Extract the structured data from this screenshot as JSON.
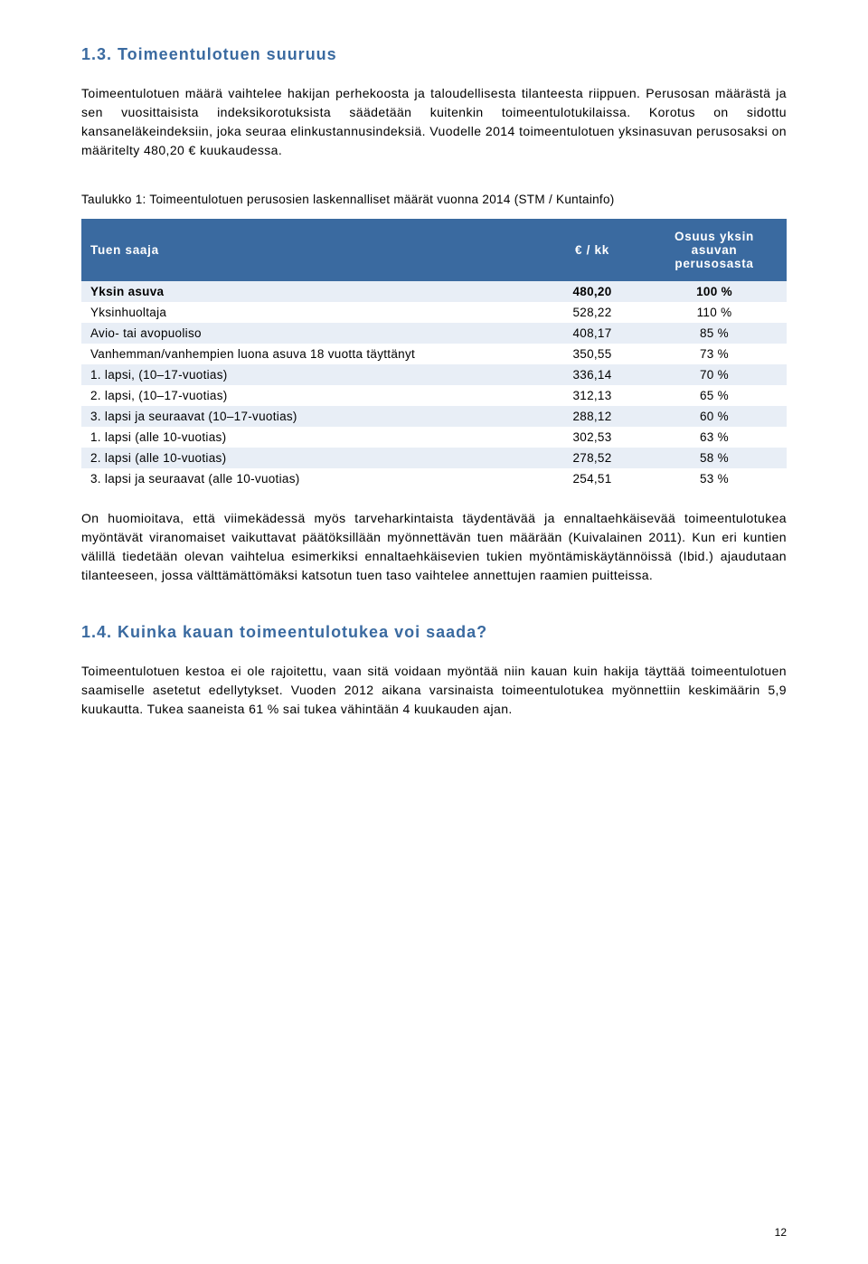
{
  "section1": {
    "heading": "1.3. Toimeentulotuen suuruus",
    "para1": "Toimeentulotuen määrä vaihtelee hakijan perhekoosta ja taloudellisesta tilanteesta riippuen. Perusosan määrästä ja sen vuosittaisista indeksikorotuksista säädetään kuitenkin toimeentulotukilaissa. Korotus on sidottu kansaneläkeindeksiin, joka seuraa elinkustannusindeksiä. Vuodelle 2014 toimeentulotuen yksinasuvan perusosaksi on määritelty 480,20 € kuukaudessa."
  },
  "table": {
    "caption": "Taulukko 1: Toimeentulotuen perusosien laskennalliset määrät vuonna 2014 (STM / Kuntainfo)",
    "header_col1": "Tuen saaja",
    "header_col2": "€ / kk",
    "header_col3": "Osuus yksin asuvan perusosasta",
    "header_bg": "#3a6aa0",
    "header_fg": "#ffffff",
    "row_alt_bg": "#e8eef6",
    "rows": [
      {
        "label": "Yksin asuva",
        "eur": "480,20",
        "pct": "100 %",
        "bold": true
      },
      {
        "label": "Yksinhuoltaja",
        "eur": "528,22",
        "pct": "110 %",
        "bold": false
      },
      {
        "label": "Avio- tai avopuoliso",
        "eur": "408,17",
        "pct": "85 %",
        "bold": false
      },
      {
        "label": "Vanhemman/vanhempien luona asuva 18 vuotta täyttänyt",
        "eur": "350,55",
        "pct": "73 %",
        "bold": false
      },
      {
        "label": "1. lapsi, (10–17-vuotias)",
        "eur": "336,14",
        "pct": "70 %",
        "bold": false
      },
      {
        "label": "2. lapsi, (10–17-vuotias)",
        "eur": "312,13",
        "pct": "65 %",
        "bold": false
      },
      {
        "label": "3. lapsi ja seuraavat (10–17-vuotias)",
        "eur": "288,12",
        "pct": "60 %",
        "bold": false
      },
      {
        "label": "1. lapsi (alle 10-vuotias)",
        "eur": "302,53",
        "pct": "63 %",
        "bold": false
      },
      {
        "label": "2. lapsi (alle 10-vuotias)",
        "eur": "278,52",
        "pct": "58 %",
        "bold": false
      },
      {
        "label": "3. lapsi ja seuraavat (alle 10-vuotias)",
        "eur": "254,51",
        "pct": "53 %",
        "bold": false
      }
    ]
  },
  "section1_after": {
    "para": "On huomioitava, että viimekädessä myös tarveharkintaista täydentävää ja ennaltaehkäisevää toimeentulotukea myöntävät viranomaiset vaikuttavat päätöksillään myönnettävän tuen määrään (Kuivalainen 2011). Kun eri kuntien välillä tiedetään olevan vaihtelua esimerkiksi ennaltaehkäisevien tukien myöntämiskäytännöissä (Ibid.) ajaudutaan tilanteeseen, jossa välttämättömäksi katsotun tuen taso vaihtelee annettujen raamien puitteissa."
  },
  "section2": {
    "heading": "1.4. Kuinka kauan toimeentulotukea voi saada?",
    "para": "Toimeentulotuen kestoa ei ole rajoitettu, vaan sitä voidaan myöntää niin kauan kuin hakija täyttää toimeentulotuen saamiselle asetetut edellytykset. Vuoden 2012 aikana varsinaista toimeentulotukea myönnettiin keskimäärin 5,9 kuukautta. Tukea saaneista 61 % sai tukea vähintään 4 kuukauden ajan."
  },
  "page_number": "12"
}
